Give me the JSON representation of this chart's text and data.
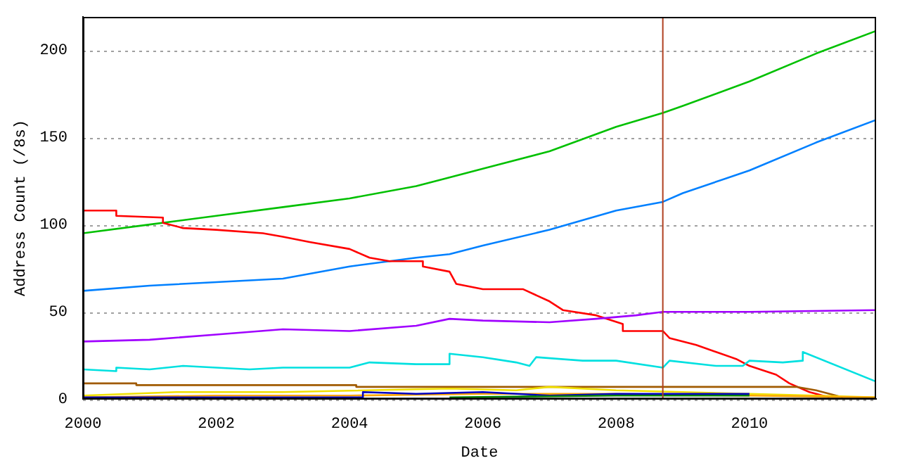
{
  "chart_data": {
    "type": "line",
    "xlabel": "Date",
    "ylabel": "Address Count (/8s)",
    "xlim": [
      2000,
      2011.9
    ],
    "xticks": [
      2000,
      2002,
      2004,
      2006,
      2008,
      2010
    ],
    "ylim": [
      0,
      219
    ],
    "yticks": [
      0,
      50,
      100,
      150,
      200
    ],
    "grid": "y",
    "legend": false,
    "marker": "none",
    "line_style": "solid",
    "ref_lines": [
      {
        "axis": "x",
        "value": 2008.7,
        "color": "#b04020"
      }
    ],
    "series": [
      {
        "color": "#00c000",
        "x": [
          2000,
          2001,
          2002,
          2003,
          2004,
          2005,
          2006,
          2007,
          2008,
          2008.7,
          2009,
          2010,
          2011,
          2011.9
        ],
        "values": [
          95,
          100,
          105,
          110,
          115,
          122,
          132,
          142,
          156,
          164,
          168,
          182,
          198,
          211
        ]
      },
      {
        "color": "#0080ff",
        "x": [
          2000,
          2001,
          2002,
          2003,
          2004,
          2005,
          2005.5,
          2006,
          2007,
          2008,
          2008.7,
          2009,
          2010,
          2011,
          2011.9
        ],
        "values": [
          62,
          65,
          67,
          69,
          76,
          81,
          83,
          88,
          97,
          108,
          113,
          118,
          131,
          147,
          160
        ]
      },
      {
        "color": "#ff0000",
        "x": [
          2000,
          2000.5,
          2000.5,
          2001.2,
          2001.2,
          2001.5,
          2002,
          2002.7,
          2003,
          2003.4,
          2004,
          2004.3,
          2004.6,
          2005.1,
          2005.1,
          2005.5,
          2005.6,
          2006,
          2006.6,
          2007,
          2007.2,
          2007.7,
          2008.1,
          2008.1,
          2008.7,
          2008.8,
          2009.2,
          2009.5,
          2009.8,
          2010,
          2010.4,
          2010.6,
          2010.9,
          2011.2
        ],
        "values": [
          108,
          108,
          105,
          104,
          101,
          98,
          97,
          95,
          93,
          90,
          86,
          81,
          79,
          79,
          76,
          73,
          66,
          63,
          63,
          56,
          51,
          48,
          43,
          39,
          39,
          35,
          31,
          27,
          23,
          19,
          14,
          9,
          4,
          1
        ]
      },
      {
        "color": "#a000ff",
        "x": [
          2000,
          2001,
          2002,
          2003,
          2004,
          2005,
          2005.5,
          2006,
          2007,
          2007.7,
          2008.3,
          2008.7,
          2010,
          2011.9
        ],
        "values": [
          33,
          34,
          37,
          40,
          39,
          42,
          46,
          45,
          44,
          46,
          48,
          50,
          50,
          51
        ]
      },
      {
        "color": "#00e0e0",
        "x": [
          2000,
          2000.5,
          2000.5,
          2001,
          2001.5,
          2002,
          2002.5,
          2003,
          2004,
          2004.3,
          2005,
          2005.5,
          2005.5,
          2006,
          2006.5,
          2006.7,
          2006.8,
          2007.5,
          2008,
          2008.7,
          2008.8,
          2009.5,
          2009.9,
          2010,
          2010.5,
          2010.8,
          2010.8,
          2011.9
        ],
        "values": [
          17,
          16,
          18,
          17,
          19,
          18,
          17,
          18,
          18,
          21,
          20,
          20,
          26,
          24,
          21,
          19,
          24,
          22,
          22,
          18,
          22,
          19,
          19,
          22,
          21,
          22,
          27,
          10
        ]
      },
      {
        "color": "#a05a00",
        "x": [
          2000,
          2000.8,
          2000.8,
          2004.1,
          2004.1,
          2010.7,
          2011,
          2011.4
        ],
        "values": [
          9,
          9,
          8,
          8,
          7,
          7,
          5,
          1
        ]
      },
      {
        "color": "#f0e000",
        "x": [
          2000,
          2000.7,
          2001.4,
          2003,
          2005.5,
          2006.5,
          2007,
          2008,
          2009,
          2010,
          2011,
          2011.9
        ],
        "values": [
          2,
          3,
          4,
          4,
          6,
          5,
          7,
          5,
          4,
          3,
          2,
          1
        ]
      },
      {
        "color": "#ffa500",
        "x": [
          2000,
          2002,
          2004,
          2006,
          2008,
          2010,
          2011.9
        ],
        "values": [
          1,
          2,
          2,
          3,
          3,
          2,
          1
        ]
      },
      {
        "color": "#0000c0",
        "x": [
          2000,
          2003,
          2004.2,
          2004.2,
          2005,
          2006,
          2007,
          2008,
          2009,
          2010
        ],
        "values": [
          1,
          1,
          1,
          4,
          3,
          4,
          2,
          3,
          3,
          3
        ]
      },
      {
        "color": "#008000",
        "x": [
          2005.5,
          2008,
          2010
        ],
        "values": [
          1,
          2,
          2
        ]
      }
    ]
  }
}
